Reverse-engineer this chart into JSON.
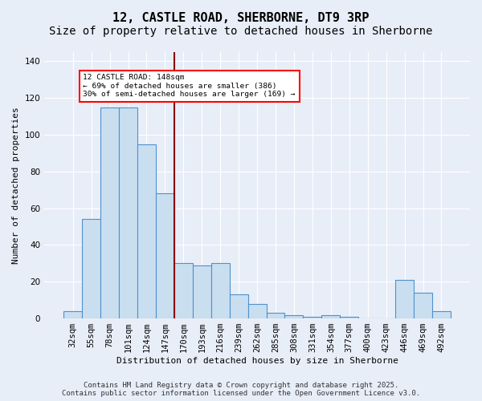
{
  "title_line1": "12, CASTLE ROAD, SHERBORNE, DT9 3RP",
  "title_line2": "Size of property relative to detached houses in Sherborne",
  "xlabel": "Distribution of detached houses by size in Sherborne",
  "ylabel": "Number of detached properties",
  "categories": [
    "32sqm",
    "55sqm",
    "78sqm",
    "101sqm",
    "124sqm",
    "147sqm",
    "170sqm",
    "193sqm",
    "216sqm",
    "239sqm",
    "262sqm",
    "285sqm",
    "308sqm",
    "331sqm",
    "354sqm",
    "377sqm",
    "400sqm",
    "423sqm",
    "446sqm",
    "469sqm",
    "492sqm"
  ],
  "values": [
    4,
    54,
    115,
    115,
    95,
    68,
    30,
    29,
    30,
    13,
    8,
    3,
    2,
    1,
    2,
    1,
    0,
    0,
    21,
    14,
    4
  ],
  "bar_color": "#c9dff0",
  "bar_edge_color": "#4f91cd",
  "red_line_index": 5.5,
  "annotation_text": "12 CASTLE ROAD: 148sqm\n← 69% of detached houses are smaller (386)\n30% of semi-detached houses are larger (169) →",
  "ylim": [
    0,
    145
  ],
  "yticks": [
    0,
    20,
    40,
    60,
    80,
    100,
    120,
    140
  ],
  "footer_line1": "Contains HM Land Registry data © Crown copyright and database right 2025.",
  "footer_line2": "Contains public sector information licensed under the Open Government Licence v3.0.",
  "bg_color": "#e8eef8",
  "title_fontsize": 11,
  "subtitle_fontsize": 10,
  "axis_fontsize": 8,
  "tick_fontsize": 7.5,
  "footer_fontsize": 6.5
}
